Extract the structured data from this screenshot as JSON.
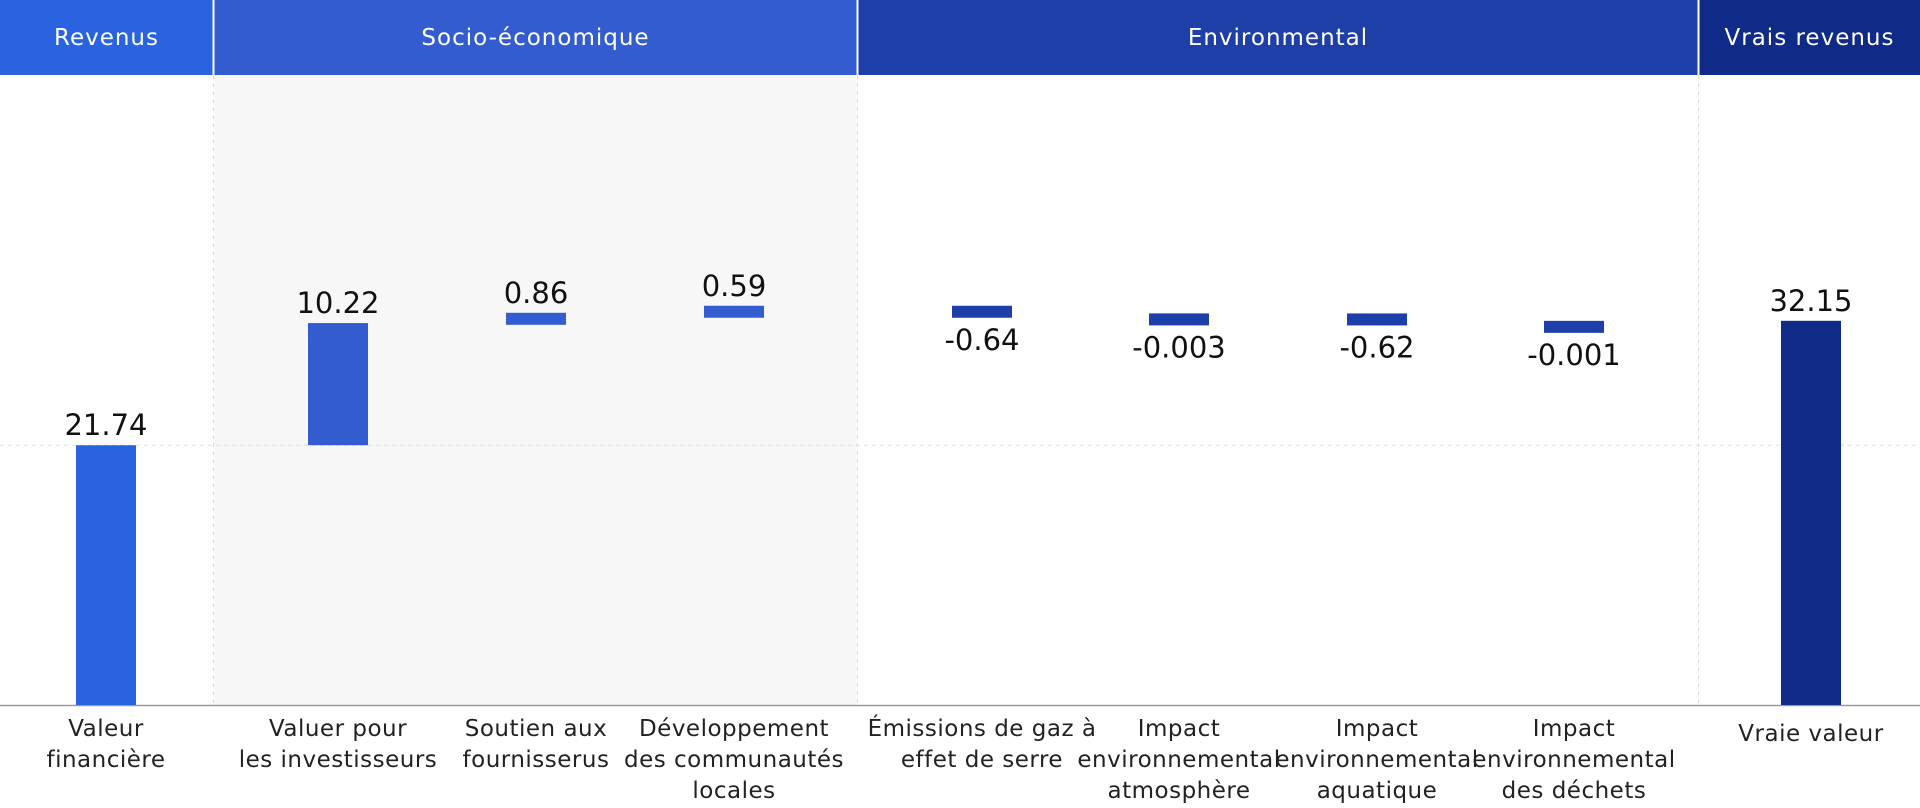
{
  "chart_data": {
    "type": "bar",
    "subtype": "waterfall",
    "groups": [
      {
        "label": "Revenus",
        "color": "#2a63e0"
      },
      {
        "label": "Socio-économique",
        "color": "#345cd1"
      },
      {
        "label": "Environmental",
        "color": "#1e3ea8"
      },
      {
        "label": "Vrais revenus",
        "color": "#0f2a87"
      }
    ],
    "categories": [
      [
        "Valeur",
        "financière"
      ],
      [
        "Valuer pour",
        "les investisseurs"
      ],
      [
        "Soutien aux",
        "fournisserus"
      ],
      [
        "Développement",
        "des communautés",
        "locales"
      ],
      [
        "Émissions de gaz à",
        "effet de serre"
      ],
      [
        "Impact",
        "environnemental",
        "atmosphère"
      ],
      [
        "Impact",
        "environnemental",
        "aquatique"
      ],
      [
        "Impact",
        "environnemental",
        "des déchets"
      ],
      [
        "Vraie valeur"
      ]
    ],
    "values": [
      21.74,
      10.22,
      0.86,
      0.59,
      -0.64,
      -0.003,
      -0.62,
      -0.001,
      32.15
    ],
    "value_labels": [
      "21.74",
      "10.22",
      "0.86",
      "0.59",
      "-0.64",
      "-0.003",
      "-0.62",
      "-0.001",
      "32.15"
    ],
    "bar_group": [
      0,
      1,
      1,
      1,
      2,
      2,
      2,
      2,
      3
    ],
    "grid": true
  }
}
